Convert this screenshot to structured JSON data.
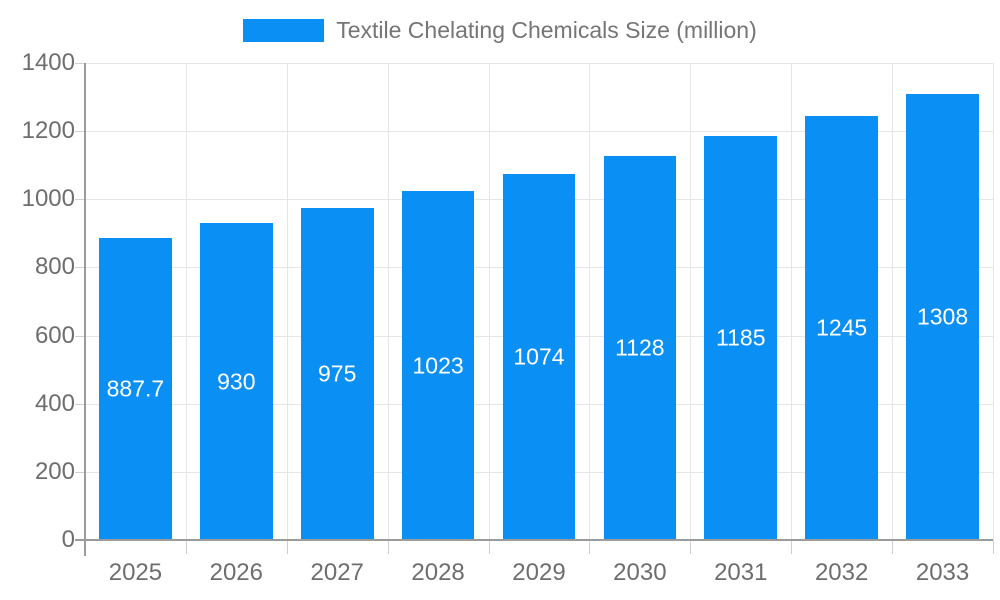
{
  "chart_data": {
    "type": "bar",
    "title": "Textile Chelating Chemicals Size (million)",
    "categories": [
      "2025",
      "2026",
      "2027",
      "2028",
      "2029",
      "2030",
      "2031",
      "2032",
      "2033"
    ],
    "values": [
      887.7,
      930,
      975,
      1023,
      1074,
      1128,
      1185,
      1245,
      1308
    ],
    "value_labels": [
      "887.7",
      "930",
      "975",
      "1023",
      "1074",
      "1128",
      "1185",
      "1245",
      "1308"
    ],
    "xlabel": "",
    "ylabel": "",
    "ylim": [
      0,
      1400
    ],
    "yticks": [
      0,
      200,
      400,
      600,
      800,
      1000,
      1200,
      1400
    ],
    "grid": true,
    "legend_position": "top-center",
    "bar_width_fraction": 0.72,
    "colors": {
      "bar": "#0a90f5",
      "grid": "#e6e6e6",
      "axis": "#9b9b9b",
      "tick": "#cfcfcf",
      "axis_label": "#6e6e6e",
      "legend_text": "#757575",
      "bar_label": "#ffffff",
      "background": "#ffffff"
    }
  }
}
